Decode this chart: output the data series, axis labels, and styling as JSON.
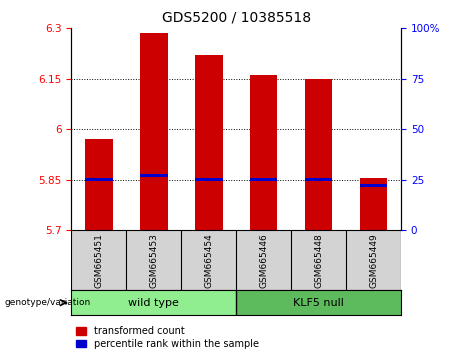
{
  "title": "GDS5200 / 10385518",
  "samples": [
    "GSM665451",
    "GSM665453",
    "GSM665454",
    "GSM665446",
    "GSM665448",
    "GSM665449"
  ],
  "group_colors": [
    "#90EE90",
    "#5DBB5D"
  ],
  "red_values": [
    5.97,
    6.285,
    6.22,
    6.16,
    6.15,
    5.855
  ],
  "blue_values_pct": [
    25,
    27,
    25,
    25,
    25,
    22
  ],
  "ylim_left": [
    5.7,
    6.3
  ],
  "yticks_left": [
    5.7,
    5.85,
    6.0,
    6.15,
    6.3
  ],
  "ytick_labels_left": [
    "5.7",
    "5.85",
    "6",
    "6.15",
    "6.3"
  ],
  "ylim_right": [
    0,
    100
  ],
  "yticks_right": [
    0,
    25,
    50,
    75,
    100
  ],
  "ytick_labels_right": [
    "0",
    "25",
    "50",
    "75",
    "100%"
  ],
  "bar_color": "#CC0000",
  "blue_color": "#0000CC",
  "bar_width": 0.5,
  "grid_yticks": [
    5.85,
    6.0,
    6.15
  ],
  "legend_red": "transformed count",
  "legend_blue": "percentile rank within the sample",
  "title_fontsize": 10,
  "tick_fontsize": 7.5,
  "label_fontsize": 7
}
